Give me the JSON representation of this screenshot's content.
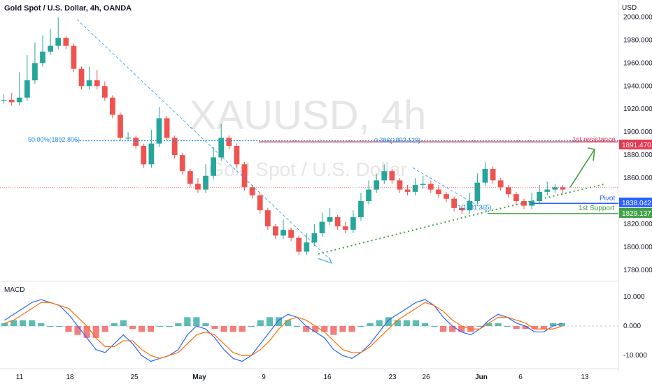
{
  "header": {
    "title": "Gold Spot / U.S. Dollar, 4h, OANDA",
    "currency": "USD"
  },
  "watermark": {
    "symbol": "XAUUSD, 4h",
    "name": "Gold Spot / U.S. Dollar"
  },
  "chart_data": [
    {
      "type": "candlestick",
      "title": "Gold Spot / U.S. Dollar, 4h, OANDA",
      "y_axis": {
        "ylim": [
          1772,
          2010
        ],
        "ticks": [
          "2000.000",
          "1980.000",
          "1960.000",
          "1940.000",
          "1920.000",
          "1900.000",
          "1880.000",
          "1860.000",
          "1840.000",
          "1820.000",
          "1800.000",
          "1780.000"
        ],
        "tick_values": [
          2000,
          1980,
          1960,
          1940,
          1920,
          1900,
          1880,
          1860,
          1840,
          1820,
          1800,
          1780
        ]
      },
      "x_axis": {
        "ticks": [
          "11",
          "18",
          "25",
          "May",
          "9",
          "16",
          "23",
          "26",
          "Jun",
          "6",
          "13"
        ]
      },
      "colors": {
        "up": "#26a69a",
        "down": "#ef5350"
      },
      "price_path": [
        [
          1931,
          1928
        ],
        [
          1932,
          1926
        ],
        [
          1950,
          1930
        ],
        [
          1965,
          1945
        ],
        [
          1976,
          1960
        ],
        [
          1982,
          1970
        ],
        [
          1988,
          1975
        ],
        [
          1998,
          1982
        ],
        [
          1982,
          1975
        ],
        [
          1965,
          1955
        ],
        [
          1948,
          1940
        ],
        [
          1955,
          1945
        ],
        [
          1952,
          1940
        ],
        [
          1942,
          1930
        ],
        [
          1925,
          1915
        ],
        [
          1905,
          1895
        ],
        [
          1898,
          1895
        ],
        [
          1893,
          1888
        ],
        [
          1880,
          1872
        ],
        [
          1900,
          1890
        ],
        [
          1920,
          1912
        ],
        [
          1905,
          1895
        ],
        [
          1888,
          1880
        ],
        [
          1872,
          1866
        ],
        [
          1862,
          1855
        ],
        [
          1858,
          1850
        ],
        [
          1870,
          1862
        ],
        [
          1885,
          1878
        ],
        [
          1905,
          1895
        ],
        [
          1895,
          1888
        ],
        [
          1878,
          1872
        ],
        [
          1860,
          1852
        ],
        [
          1850,
          1845
        ],
        [
          1840,
          1832
        ],
        [
          1825,
          1818
        ],
        [
          1815,
          1810
        ],
        [
          1822,
          1815
        ],
        [
          1812,
          1808
        ],
        [
          1802,
          1796
        ],
        [
          1810,
          1804
        ],
        [
          1818,
          1812
        ],
        [
          1828,
          1822
        ],
        [
          1832,
          1826
        ],
        [
          1824,
          1818
        ],
        [
          1820,
          1815
        ],
        [
          1830,
          1826
        ],
        [
          1845,
          1840
        ],
        [
          1856,
          1850
        ],
        [
          1862,
          1858
        ],
        [
          1870,
          1866
        ],
        [
          1864,
          1858
        ],
        [
          1855,
          1850
        ],
        [
          1852,
          1848
        ],
        [
          1858,
          1854
        ],
        [
          1860,
          1855
        ],
        [
          1856,
          1850
        ],
        [
          1852,
          1846
        ],
        [
          1846,
          1842
        ],
        [
          1838,
          1834
        ],
        [
          1832,
          1832
        ],
        [
          1845,
          1840
        ],
        [
          1862,
          1856
        ],
        [
          1872,
          1868
        ],
        [
          1864,
          1858
        ],
        [
          1856,
          1852
        ],
        [
          1850,
          1846
        ],
        [
          1846,
          1840
        ],
        [
          1838,
          1836
        ],
        [
          1845,
          1840
        ],
        [
          1852,
          1848
        ],
        [
          1855,
          1850
        ],
        [
          1853,
          1852
        ],
        [
          1852,
          1850
        ]
      ],
      "macd": {
        "ylim": [
          -14,
          14
        ],
        "ticks": [
          "10.000",
          "0.000",
          "-10.000"
        ],
        "tick_values": [
          10,
          0,
          -10
        ],
        "macd_line": [
          2,
          4,
          6,
          8,
          9,
          8,
          7,
          4,
          0,
          -4,
          -8,
          -9,
          -6,
          -3,
          -6,
          -10,
          -12,
          -11,
          -10,
          -8,
          -3,
          0,
          -1,
          -4,
          -8,
          -11,
          -12,
          -10,
          -6,
          -2,
          2,
          4,
          3,
          0,
          -2,
          -4,
          -8,
          -10,
          -11,
          -9,
          -6,
          -2,
          2,
          4,
          6,
          8,
          9,
          7,
          3,
          0,
          -2,
          -3,
          -1,
          2,
          4,
          3,
          1,
          0,
          -2,
          -2,
          0,
          1
        ],
        "signal_line": [
          1,
          2,
          4,
          6,
          8,
          8,
          7,
          6,
          3,
          0,
          -4,
          -7,
          -7,
          -5,
          -5,
          -8,
          -10,
          -11,
          -10,
          -9,
          -6,
          -3,
          -2,
          -3,
          -6,
          -9,
          -10,
          -10,
          -8,
          -5,
          -1,
          2,
          3,
          2,
          0,
          -2,
          -5,
          -8,
          -9,
          -9,
          -7,
          -4,
          -1,
          2,
          4,
          6,
          8,
          7,
          5,
          2,
          0,
          -1,
          -1,
          1,
          3,
          3,
          2,
          1,
          -1,
          -1,
          -1,
          0
        ],
        "histogram": [
          1,
          2,
          2,
          2,
          1,
          0,
          0,
          -2,
          -3,
          -4,
          -4,
          -2,
          1,
          2,
          -1,
          -2,
          -2,
          0,
          0,
          1,
          3,
          3,
          1,
          -1,
          -2,
          -2,
          -2,
          0,
          2,
          3,
          3,
          2,
          0,
          -2,
          -2,
          -2,
          -3,
          -2,
          -2,
          0,
          1,
          2,
          3,
          2,
          2,
          2,
          1,
          0,
          -2,
          -2,
          -2,
          -2,
          0,
          1,
          1,
          0,
          -1,
          -1,
          -1,
          -1,
          1,
          1
        ]
      }
    }
  ],
  "annotations": {
    "fib_label_left": "50.00%(1892.806)",
    "fib_label_right": "0.786(1892.129)",
    "fib_label_low": "1(1831.365)",
    "resistance_label": "1st resistance",
    "pivot_label": "Pivot",
    "support_label": "1st Support",
    "resistance_value": "1891.470",
    "pivot_value": "1838.042",
    "support_value": "1829.137",
    "resistance_price": 1891.47,
    "pivot_price": 1838.042,
    "support_price": 1829.137,
    "fib_price": 1892.5,
    "current_price": 1852,
    "colors": {
      "resistance": "#e53950",
      "pivot": "#2962ff",
      "support": "#43a047",
      "fib": "#2196f3"
    }
  },
  "macd_panel": {
    "label": "MACD"
  }
}
